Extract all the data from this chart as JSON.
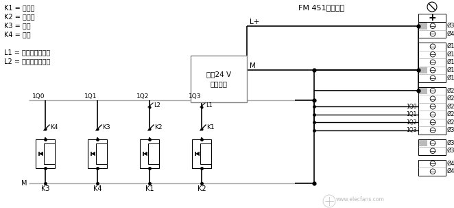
{
  "bg_color": "#ffffff",
  "line_color": "#000000",
  "gray_color": "#aaaaaa",
  "legend_texts": [
    "K1 = 正方向",
    "K2 = 负方向",
    "K3 = 快速",
    "K4 = 慢速",
    "L1 = 左硬件限制开关",
    "L2 = 右硬件限制开关"
  ],
  "title": "FM 451前连接器",
  "power_label1": "外郥24 V",
  "power_label2": "直流电源",
  "lplus": "L+",
  "m_label": "M",
  "col_top_labels": [
    "1Q0",
    "1Q1",
    "1Q2",
    "1Q3"
  ],
  "switch_labels": [
    "K4",
    "K3",
    "K2",
    "K1"
  ],
  "limit_labels": [
    null,
    null,
    "L2",
    "L1"
  ],
  "bottom_labels": [
    "K3",
    "K4",
    "K1",
    "K2"
  ],
  "connector_q_labels": [
    "1Q0",
    "1Q1",
    "1Q2",
    "1Q3"
  ],
  "watermark": "www.elecfans.com"
}
